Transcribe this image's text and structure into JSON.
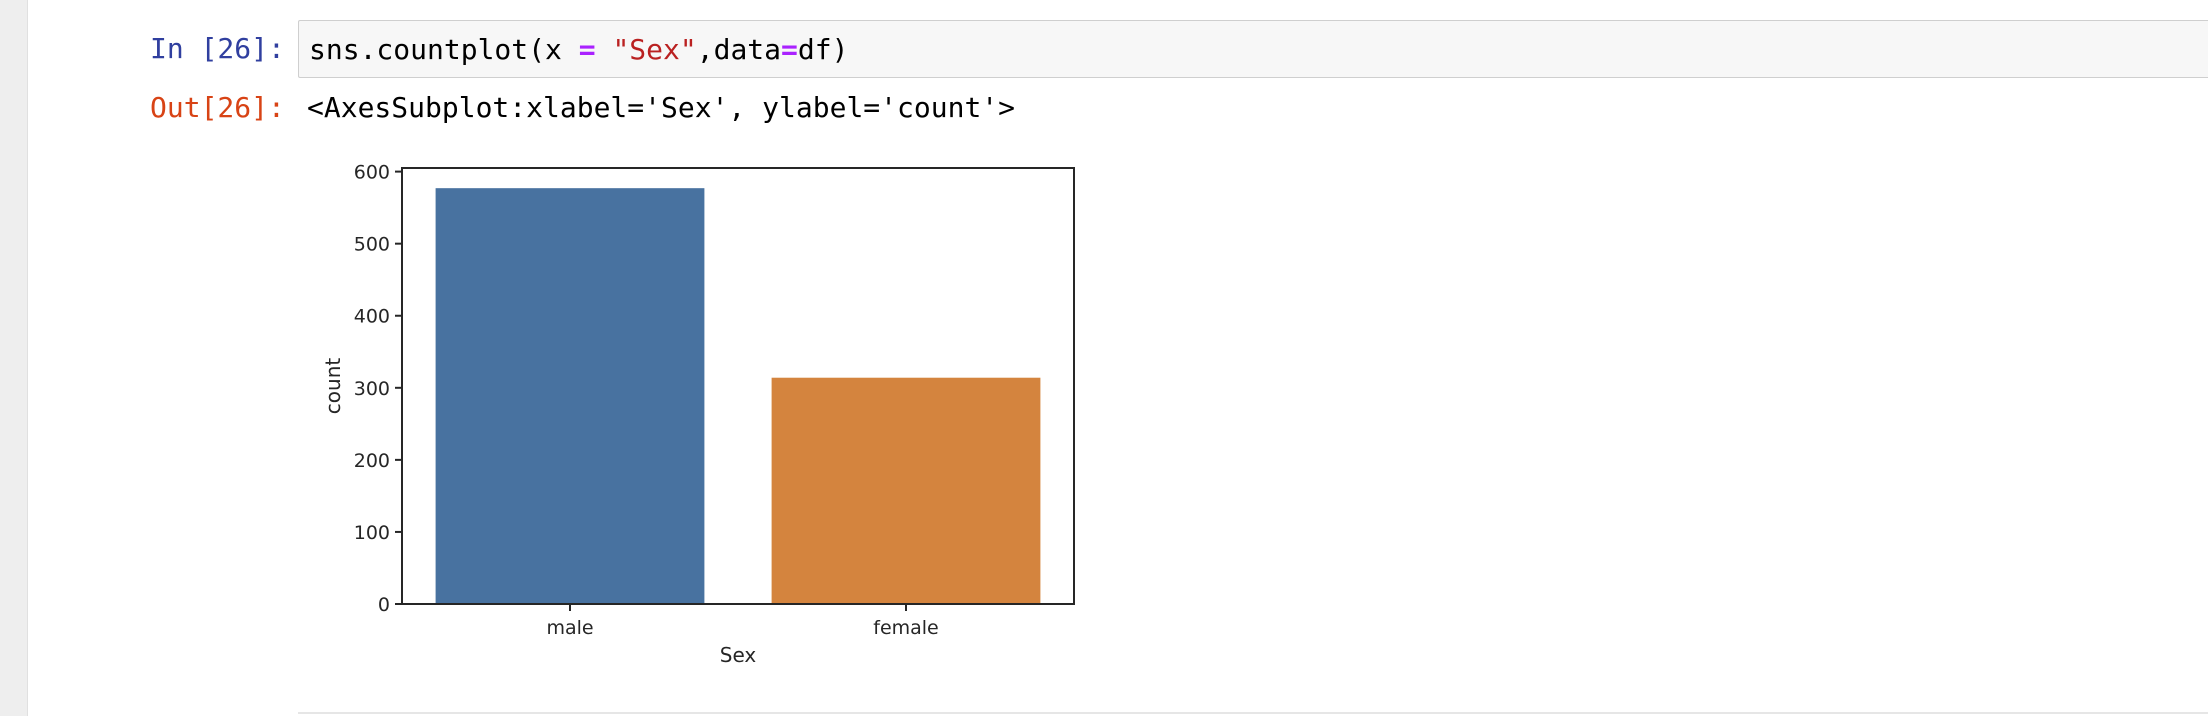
{
  "notebook": {
    "input_cell": {
      "prompt": "In [26]:",
      "code_tokens": [
        {
          "text": "sns.countplot(x ",
          "type": "plain"
        },
        {
          "text": "=",
          "type": "op"
        },
        {
          "text": " ",
          "type": "plain"
        },
        {
          "text": "\"Sex\"",
          "type": "str"
        },
        {
          "text": ",data",
          "type": "plain"
        },
        {
          "text": "=",
          "type": "op"
        },
        {
          "text": "df)",
          "type": "plain"
        }
      ]
    },
    "output_cell": {
      "prompt": "Out[26]:",
      "text": "<AxesSubplot:xlabel='Sex', ylabel='count'>"
    }
  },
  "chart_data": {
    "type": "bar",
    "categories": [
      "male",
      "female"
    ],
    "values": [
      577,
      314
    ],
    "colors": [
      "#4872a0",
      "#d4843e"
    ],
    "xlabel": "Sex",
    "ylabel": "count",
    "ylim": [
      0,
      605
    ],
    "yticks": [
      "0",
      "100",
      "200",
      "300",
      "400",
      "500",
      "600"
    ],
    "ytick_values": [
      0,
      100,
      200,
      300,
      400,
      500,
      600
    ],
    "grid": false
  }
}
